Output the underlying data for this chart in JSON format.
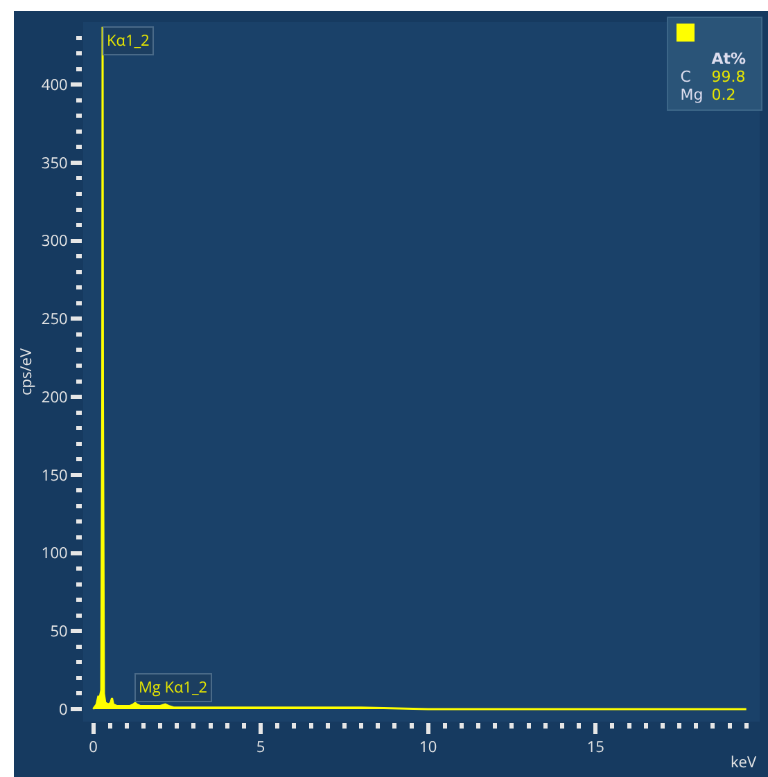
{
  "chart_data": {
    "type": "area",
    "ylabel": "cps/eV",
    "xlabel": "keV",
    "x": [
      0,
      0.1,
      0.15,
      0.2,
      0.24,
      0.27,
      0.28,
      0.29,
      0.32,
      0.36,
      0.45,
      0.52,
      0.56,
      0.6,
      0.7,
      0.9,
      1.1,
      1.2,
      1.25,
      1.3,
      1.4,
      1.6,
      1.8,
      2.0,
      2.15,
      2.25,
      2.4,
      3,
      4,
      6,
      8,
      10,
      12,
      15,
      19.5
    ],
    "series": [
      {
        "color": "#ffff00",
        "values": [
          0,
          3,
          8,
          8,
          12,
          200,
          437,
          200,
          10,
          4,
          3,
          4,
          7,
          3,
          2,
          2,
          2,
          3,
          4,
          3,
          2,
          2,
          2,
          2,
          3,
          2,
          1,
          1,
          1,
          1,
          1,
          0,
          0,
          0,
          0
        ]
      }
    ],
    "xlim": [
      -0.3,
      19.9
    ],
    "ylim": [
      -8,
      440
    ],
    "xticks": [
      0,
      {
        "value": 0.5,
        "label": null
      },
      {
        "value": 1,
        "label": null
      },
      {
        "value": 1.5,
        "label": null
      },
      {
        "value": 2,
        "label": null
      },
      {
        "value": 2.5,
        "label": null
      },
      {
        "value": 3,
        "label": null
      },
      {
        "value": 3.5,
        "label": null
      },
      {
        "value": 4,
        "label": null
      },
      {
        "value": 4.5,
        "label": null
      },
      5,
      {
        "value": 5.5,
        "label": null
      },
      {
        "value": 6,
        "label": null
      },
      {
        "value": 6.5,
        "label": null
      },
      {
        "value": 7,
        "label": null
      },
      {
        "value": 7.5,
        "label": null
      },
      {
        "value": 8,
        "label": null
      },
      {
        "value": 8.5,
        "label": null
      },
      {
        "value": 9,
        "label": null
      },
      {
        "value": 9.5,
        "label": null
      },
      10,
      {
        "value": 10.5,
        "label": null
      },
      {
        "value": 11,
        "label": null
      },
      {
        "value": 11.5,
        "label": null
      },
      {
        "value": 12,
        "label": null
      },
      {
        "value": 12.5,
        "label": null
      },
      {
        "value": 13,
        "label": null
      },
      {
        "value": 13.5,
        "label": null
      },
      {
        "value": 14,
        "label": null
      },
      {
        "value": 14.5,
        "label": null
      },
      15,
      {
        "value": 15.5,
        "label": null
      },
      {
        "value": 16,
        "label": null
      },
      {
        "value": 16.5,
        "label": null
      },
      {
        "value": 17,
        "label": null
      },
      {
        "value": 17.5,
        "label": null
      },
      {
        "value": 18,
        "label": null
      },
      {
        "value": 18.5,
        "label": null
      },
      {
        "value": 19,
        "label": null
      },
      {
        "value": 19.5,
        "label": null
      }
    ],
    "yticks": [
      0,
      {
        "value": 10,
        "label": null
      },
      {
        "value": 20,
        "label": null
      },
      {
        "value": 30,
        "label": null
      },
      {
        "value": 40,
        "label": null
      },
      50,
      {
        "value": 60,
        "label": null
      },
      {
        "value": 70,
        "label": null
      },
      {
        "value": 80,
        "label": null
      },
      {
        "value": 90,
        "label": null
      },
      100,
      {
        "value": 110,
        "label": null
      },
      {
        "value": 120,
        "label": null
      },
      {
        "value": 130,
        "label": null
      },
      {
        "value": 140,
        "label": null
      },
      150,
      {
        "value": 160,
        "label": null
      },
      {
        "value": 170,
        "label": null
      },
      {
        "value": 180,
        "label": null
      },
      {
        "value": 190,
        "label": null
      },
      200,
      {
        "value": 210,
        "label": null
      },
      {
        "value": 220,
        "label": null
      },
      {
        "value": 230,
        "label": null
      },
      {
        "value": 240,
        "label": null
      },
      250,
      {
        "value": 260,
        "label": null
      },
      {
        "value": 270,
        "label": null
      },
      {
        "value": 280,
        "label": null
      },
      {
        "value": 290,
        "label": null
      },
      300,
      {
        "value": 310,
        "label": null
      },
      {
        "value": 320,
        "label": null
      },
      {
        "value": 330,
        "label": null
      },
      {
        "value": 340,
        "label": null
      },
      350,
      {
        "value": 360,
        "label": null
      },
      {
        "value": 370,
        "label": null
      },
      {
        "value": 380,
        "label": null
      },
      {
        "value": 390,
        "label": null
      },
      400,
      {
        "value": 410,
        "label": null
      },
      {
        "value": 420,
        "label": null
      },
      {
        "value": 430,
        "label": null
      }
    ],
    "grid": false,
    "annotations": [
      {
        "text": "Kα1_2",
        "x": 0.28,
        "y": 437
      },
      {
        "text": "Mg Kα1_2",
        "x": 1.25,
        "y": 4
      },
      "At%",
      "C",
      "99.8",
      "Mg",
      "0.2"
    ]
  }
}
